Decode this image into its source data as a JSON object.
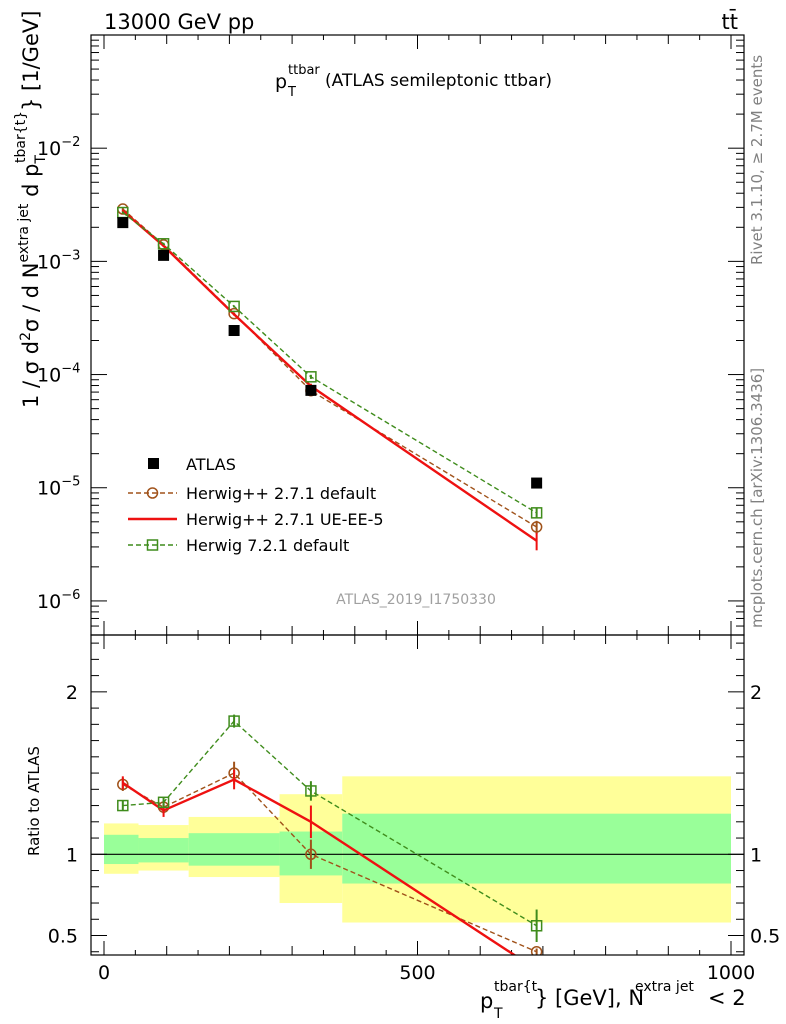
{
  "header": {
    "left": "13000 GeV pp",
    "right": "tt̄"
  },
  "side_labels": {
    "rivet": "Rivet 3.1.10, ≥ 2.7M events",
    "mcplots": "mcplots.cern.ch [arXiv:1306.3436]"
  },
  "main_title": {
    "p": "p",
    "sup": "ttbar",
    "sub": "T",
    "rest": "(ATLAS semileptonic ttbar)"
  },
  "analysis_id": "ATLAS_2019_I1750330",
  "ylabel_main": "1 / σ d²σ / d N^{extra jet} d p_T^{tbar{t}} [1/GeV]",
  "ylabel_ratio": "Ratio to ATLAS",
  "xlabel": "p_T^{tbar{t}} [GeV], N^{extra jet} < 2",
  "legend": [
    "ATLAS",
    "Herwig++ 2.7.1 default",
    "Herwig++ 2.7.1 UE-EE-5",
    "Herwig 7.2.1 default"
  ],
  "colors": {
    "atlas": "#000000",
    "herwigpp_default": "#a0521a",
    "herwigpp_ueee5": "#ee1111",
    "herwig721": "#3f8c1c",
    "band_inner": "#99ff99",
    "band_outer": "#ffff99"
  },
  "chart_data": [
    {
      "type": "scatter",
      "panel": "main",
      "y_scale": "log",
      "xlim": [
        -10,
        1010
      ],
      "ylim": [
        5e-07,
        0.1
      ],
      "x_ticks": [
        "0",
        "500",
        "1000"
      ],
      "y_ticks": [
        "10^-6",
        "10^-5",
        "10^-4",
        "10^-3",
        "10^-2"
      ],
      "x": [
        30,
        95,
        207.5,
        330,
        690
      ],
      "series": [
        {
          "name": "ATLAS",
          "values": [
            0.0022,
            0.00113,
            0.000245,
            7.25e-05,
            1.1e-05
          ]
        },
        {
          "name": "Herwig++ 2.7.1 default",
          "values": [
            0.0029,
            0.0014,
            0.000345,
            7.2e-05,
            4.5e-06
          ],
          "errors": [
            6e-05,
            3e-05,
            8e-06,
            4e-06,
            6e-07
          ]
        },
        {
          "name": "Herwig++ 2.7.1 UE-EE-5",
          "values": [
            0.0028,
            0.00137,
            0.00034,
            7.9e-05,
            3.4e-06
          ],
          "errors": [
            6e-05,
            3e-05,
            8e-06,
            4e-06,
            6e-07
          ]
        },
        {
          "name": "Herwig 7.2.1 default",
          "values": [
            0.0027,
            0.00143,
            0.0004,
            9.55e-05,
            6e-06
          ],
          "errors": [
            6e-05,
            3e-05,
            8e-06,
            4e-06,
            6e-07
          ]
        }
      ]
    },
    {
      "type": "line",
      "panel": "ratio",
      "xlim": [
        -10,
        1010
      ],
      "ylim": [
        0.38,
        2.35
      ],
      "y_ticks": [
        "0.5",
        "1",
        "2"
      ],
      "x": [
        30,
        95,
        207.5,
        330,
        690
      ],
      "bands": {
        "edges": [
          0,
          55,
          135,
          280,
          380,
          1000
        ],
        "inner": [
          [
            0.94,
            1.12
          ],
          [
            0.95,
            1.1
          ],
          [
            0.93,
            1.13
          ],
          [
            0.87,
            1.14
          ],
          [
            0.82,
            1.25
          ]
        ],
        "outer": [
          [
            0.88,
            1.19
          ],
          [
            0.9,
            1.18
          ],
          [
            0.86,
            1.23
          ],
          [
            0.7,
            1.37
          ],
          [
            0.58,
            1.48
          ]
        ]
      },
      "series": [
        {
          "name": "Herwig++ 2.7.1 default",
          "values": [
            1.43,
            1.29,
            1.5,
            1.0,
            0.4
          ],
          "errors": [
            0.04,
            0.04,
            0.07,
            0.09,
            0.02
          ]
        },
        {
          "name": "Herwig++ 2.7.1 UE-EE-5",
          "values": [
            1.44,
            1.27,
            1.46,
            1.2,
            0.29
          ],
          "errors": [
            0.04,
            0.04,
            0.06,
            0.1,
            0.02
          ]
        },
        {
          "name": "Herwig 7.2.1 default",
          "values": [
            1.3,
            1.32,
            1.82,
            1.39,
            0.56
          ],
          "errors": [
            0.03,
            0.03,
            0.04,
            0.06,
            0.1
          ]
        }
      ]
    }
  ]
}
